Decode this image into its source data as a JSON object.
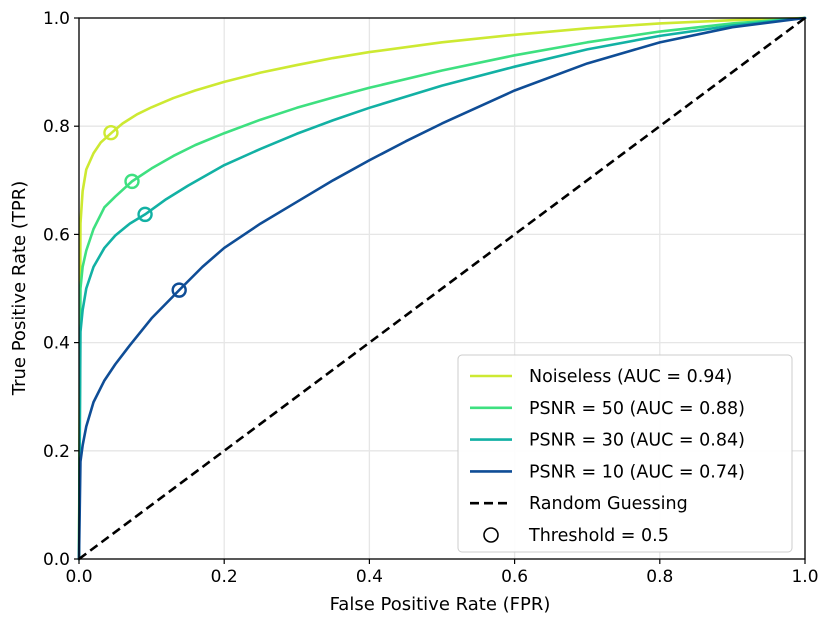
{
  "chart_data": {
    "type": "line",
    "title": "",
    "xlabel": "False Positive Rate (FPR)",
    "ylabel": "True Positive Rate (TPR)",
    "xlim": [
      0,
      1
    ],
    "ylim": [
      0,
      1
    ],
    "xticks": [
      "0.0",
      "0.2",
      "0.4",
      "0.6",
      "0.8",
      "1.0"
    ],
    "yticks": [
      "0.0",
      "0.2",
      "0.4",
      "0.6",
      "0.8",
      "1.0"
    ],
    "grid": true,
    "legend_position": "bottom-right",
    "series": [
      {
        "name": "Noiseless (AUC = 0.94)",
        "color": "#cde932",
        "x": [
          0,
          0.002,
          0.005,
          0.01,
          0.02,
          0.03,
          0.045,
          0.06,
          0.08,
          0.1,
          0.13,
          0.16,
          0.2,
          0.25,
          0.3,
          0.35,
          0.4,
          0.5,
          0.6,
          0.7,
          0.8,
          0.9,
          1.0
        ],
        "y": [
          0,
          0.62,
          0.68,
          0.72,
          0.75,
          0.77,
          0.788,
          0.805,
          0.822,
          0.835,
          0.852,
          0.866,
          0.882,
          0.899,
          0.913,
          0.926,
          0.937,
          0.955,
          0.969,
          0.981,
          0.99,
          0.996,
          1.0
        ],
        "threshold": [
          0.044,
          0.788
        ]
      },
      {
        "name": "PSNR = 50 (AUC = 0.88)",
        "color": "#3ee080",
        "x": [
          0,
          0.002,
          0.005,
          0.01,
          0.02,
          0.035,
          0.05,
          0.073,
          0.1,
          0.13,
          0.16,
          0.2,
          0.25,
          0.3,
          0.35,
          0.4,
          0.5,
          0.6,
          0.7,
          0.8,
          0.9,
          1.0
        ],
        "y": [
          0,
          0.5,
          0.54,
          0.57,
          0.61,
          0.65,
          0.67,
          0.698,
          0.722,
          0.745,
          0.765,
          0.787,
          0.812,
          0.834,
          0.853,
          0.871,
          0.903,
          0.931,
          0.955,
          0.975,
          0.99,
          1.0
        ],
        "threshold": [
          0.073,
          0.698
        ]
      },
      {
        "name": "PSNR = 30 (AUC = 0.84)",
        "color": "#12b1a4",
        "x": [
          0,
          0.002,
          0.005,
          0.01,
          0.02,
          0.035,
          0.05,
          0.07,
          0.091,
          0.12,
          0.15,
          0.2,
          0.25,
          0.3,
          0.35,
          0.4,
          0.5,
          0.6,
          0.7,
          0.8,
          0.9,
          1.0
        ],
        "y": [
          0,
          0.42,
          0.46,
          0.5,
          0.54,
          0.575,
          0.598,
          0.62,
          0.637,
          0.665,
          0.69,
          0.728,
          0.758,
          0.786,
          0.811,
          0.834,
          0.875,
          0.91,
          0.942,
          0.967,
          0.986,
          1.0
        ],
        "threshold": [
          0.091,
          0.637
        ]
      },
      {
        "name": "PSNR = 10 (AUC = 0.74)",
        "color": "#0f4d96",
        "x": [
          0,
          0.002,
          0.005,
          0.01,
          0.02,
          0.035,
          0.05,
          0.07,
          0.1,
          0.138,
          0.17,
          0.2,
          0.25,
          0.3,
          0.35,
          0.4,
          0.45,
          0.5,
          0.6,
          0.7,
          0.8,
          0.9,
          1.0
        ],
        "y": [
          0,
          0.18,
          0.21,
          0.245,
          0.29,
          0.33,
          0.36,
          0.395,
          0.445,
          0.497,
          0.54,
          0.575,
          0.62,
          0.66,
          0.7,
          0.737,
          0.772,
          0.805,
          0.866,
          0.916,
          0.955,
          0.983,
          1.0
        ],
        "threshold": [
          0.138,
          0.497
        ]
      }
    ],
    "reference_line": {
      "name": "Random Guessing",
      "style": "dashed",
      "color": "#000000",
      "x": [
        0,
        1
      ],
      "y": [
        0,
        1
      ]
    },
    "marker_legend": "Threshold = 0.5"
  }
}
